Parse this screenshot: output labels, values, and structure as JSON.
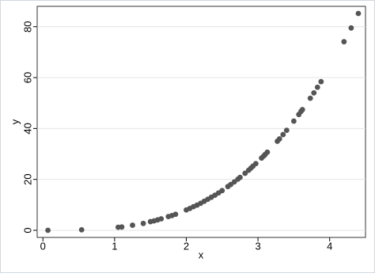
{
  "chart_data": {
    "type": "scatter",
    "x_label": "x",
    "y_label": "y",
    "x": [
      0.07,
      0.54,
      1.05,
      1.1,
      1.25,
      1.4,
      1.5,
      1.55,
      1.6,
      1.65,
      1.75,
      1.8,
      1.85,
      2.0,
      2.05,
      2.1,
      2.15,
      2.2,
      2.25,
      2.3,
      2.35,
      2.4,
      2.45,
      2.5,
      2.58,
      2.62,
      2.67,
      2.72,
      2.75,
      2.82,
      2.87,
      2.9,
      2.93,
      2.97,
      3.05,
      3.08,
      3.1,
      3.13,
      3.27,
      3.3,
      3.35,
      3.4,
      3.5,
      3.57,
      3.6,
      3.62,
      3.73,
      3.78,
      3.83,
      3.88,
      4.2,
      4.3,
      4.4
    ],
    "series": [
      {
        "name": "y",
        "color": "#555555",
        "values": [
          0.0,
          0.2,
          1.2,
          1.3,
          2.0,
          2.7,
          3.4,
          3.7,
          4.1,
          4.5,
          5.4,
          5.8,
          6.3,
          8.0,
          8.6,
          9.3,
          9.9,
          10.6,
          11.4,
          12.2,
          13.0,
          13.8,
          14.7,
          15.6,
          17.2,
          18.0,
          19.0,
          20.1,
          20.8,
          22.4,
          23.6,
          24.4,
          25.2,
          26.2,
          28.4,
          29.2,
          29.8,
          30.7,
          35.0,
          35.9,
          37.6,
          39.3,
          42.9,
          45.5,
          46.7,
          47.4,
          51.9,
          54.0,
          56.2,
          58.4,
          74.1,
          79.5,
          85.2
        ]
      }
    ],
    "xlim": [
      -0.08,
      4.5
    ],
    "ylim": [
      -2.8,
      88
    ],
    "xticks": [
      0,
      1,
      2,
      3,
      4
    ],
    "yticks": [
      0,
      20,
      40,
      60,
      80
    ],
    "grid": true
  }
}
